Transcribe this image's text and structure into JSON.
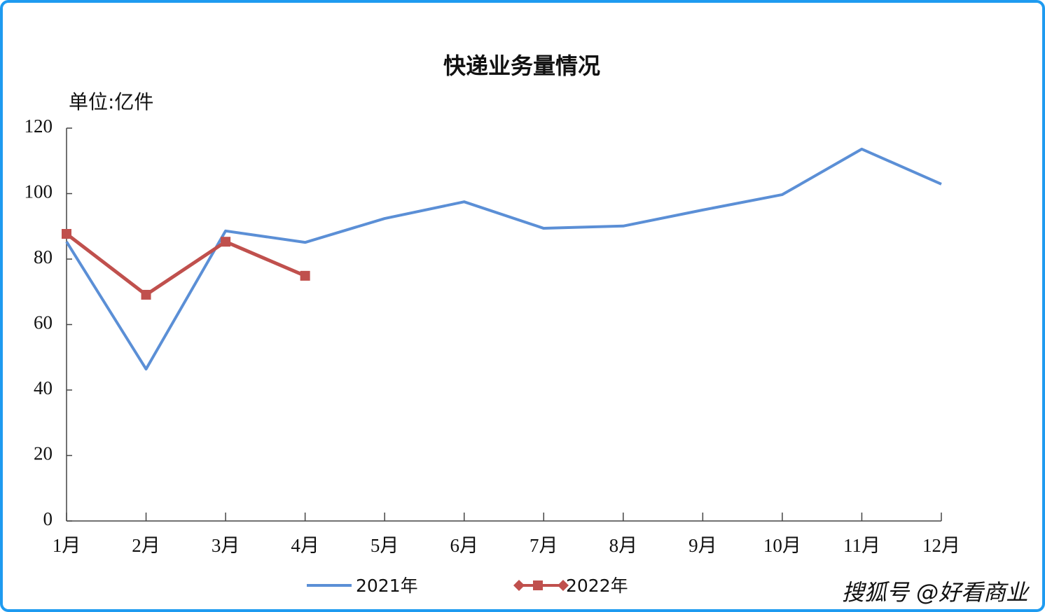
{
  "chart_data": {
    "type": "line",
    "title": "快递业务量情况",
    "y_label": "单位:亿件",
    "categories": [
      "1月",
      "2月",
      "3月",
      "4月",
      "5月",
      "6月",
      "7月",
      "8月",
      "9月",
      "10月",
      "11月",
      "12月"
    ],
    "series": [
      {
        "name": "2021年",
        "color": "#5b8fd6",
        "marker": "none",
        "values": [
          85.3,
          46.4,
          88.6,
          85.1,
          92.4,
          97.5,
          89.4,
          90.1,
          95.0,
          99.7,
          113.6,
          102.9
        ]
      },
      {
        "name": "2022年",
        "color": "#c0504d",
        "marker": "square",
        "values": [
          87.7,
          69.1,
          85.3,
          74.9,
          null,
          null,
          null,
          null,
          null,
          null,
          null,
          null
        ]
      }
    ],
    "ylim": [
      0,
      120
    ],
    "yticks": [
      0,
      20,
      40,
      60,
      80,
      100,
      120
    ],
    "grid": false,
    "legend": "bottom",
    "watermark": "搜狐号 @好看商业"
  }
}
